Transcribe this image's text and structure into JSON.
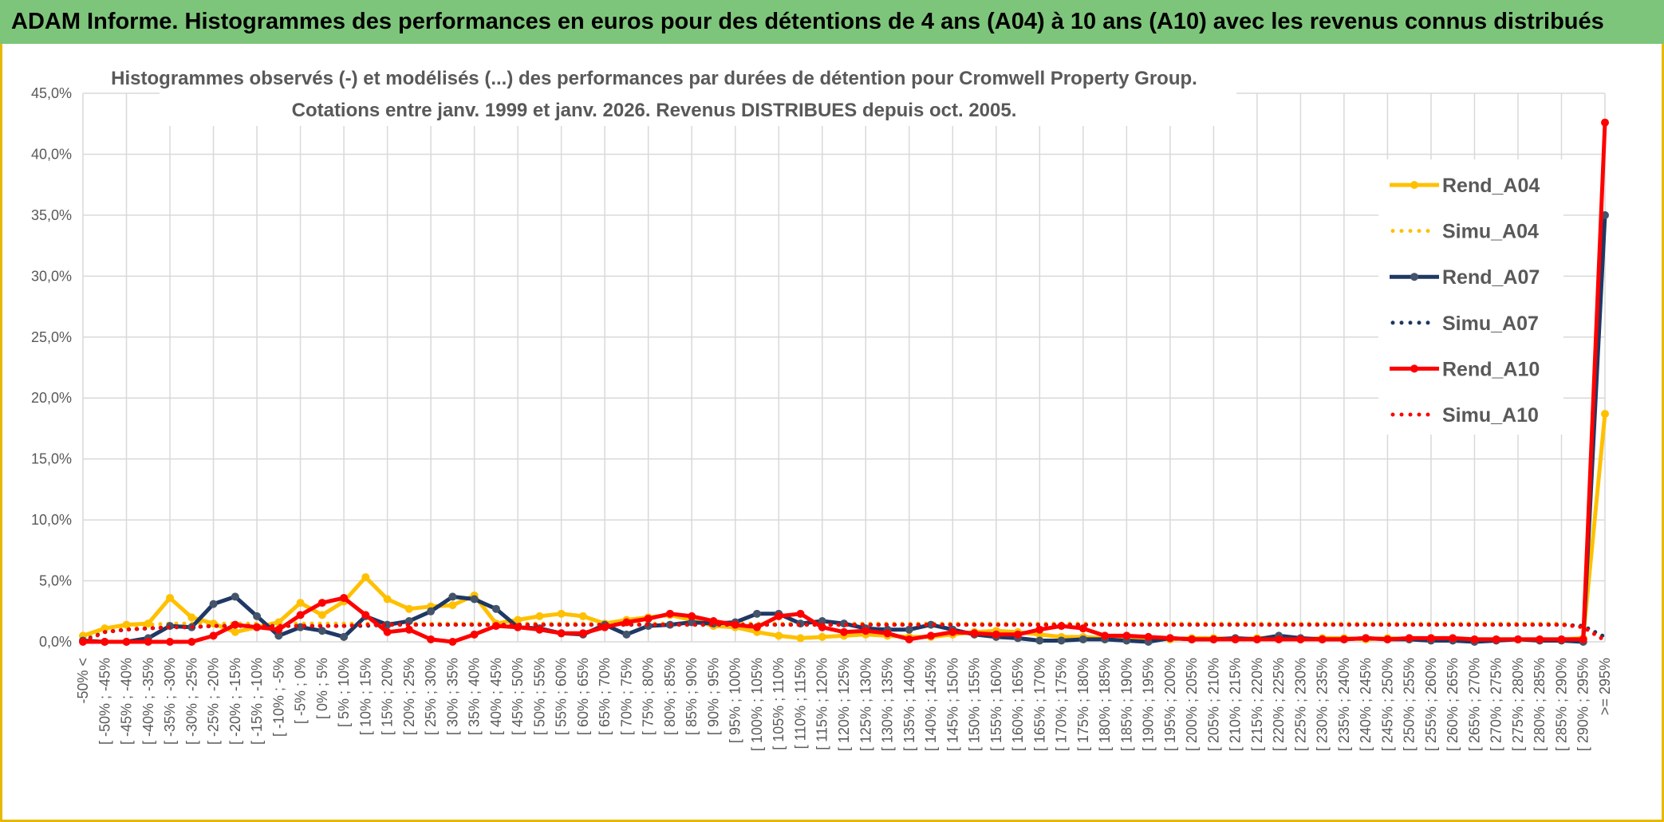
{
  "header": {
    "title": "ADAM Informe. Histogrammes des performances en euros pour des détentions de 4 ans (A04) à 10 ans (A10) avec les revenus connus distribués"
  },
  "chart_data": {
    "type": "line",
    "title": "Histogrammes observés (-) et modélisés (...) des performances par durées de détention pour Cromwell Property Group.",
    "subtitle": "Cotations entre janv. 1999 et janv. 2026. Revenus DISTRIBUES depuis oct. 2005.",
    "xlabel": "",
    "ylabel": "",
    "ylim": [
      0,
      45
    ],
    "yticks": [
      "0,0%",
      "5,0%",
      "10,0%",
      "15,0%",
      "20,0%",
      "25,0%",
      "30,0%",
      "35,0%",
      "40,0%",
      "45,0%"
    ],
    "categories": [
      "-50% <",
      "[ -50% ; -45%",
      "[ -45% ; -40%",
      "[ -40% ; -35%",
      "[ -35% ; -30%",
      "[ -30% ; -25%",
      "[ -25% ; -20%",
      "[ -20% ; -15%",
      "[ -15% ; -10%",
      "[ -10% ; -5%",
      "[ -5% ; 0%",
      "[ 0% ; 5%",
      "[ 5% ; 10%",
      "[ 10% ; 15%",
      "[ 15% ; 20%",
      "[ 20% ; 25%",
      "[ 25% ; 30%",
      "[ 30% ; 35%",
      "[ 35% ; 40%",
      "[ 40% ; 45%",
      "[ 45% ; 50%",
      "[ 50% ; 55%",
      "[ 55% ; 60%",
      "[ 60% ; 65%",
      "[ 65% ; 70%",
      "[ 70% ; 75%",
      "[ 75% ; 80%",
      "[ 80% ; 85%",
      "[ 85% ; 90%",
      "[ 90% ; 95%",
      "[ 95% ; 100%",
      "[ 100% ; 105%",
      "[ 105% ; 110%",
      "[ 110% ; 115%",
      "[ 115% ; 120%",
      "[ 120% ; 125%",
      "[ 125% ; 130%",
      "[ 130% ; 135%",
      "[ 135% ; 140%",
      "[ 140% ; 145%",
      "[ 145% ; 150%",
      "[ 150% ; 155%",
      "[ 155% ; 160%",
      "[ 160% ; 165%",
      "[ 165% ; 170%",
      "[ 170% ; 175%",
      "[ 175% ; 180%",
      "[ 180% ; 185%",
      "[ 185% ; 190%",
      "[ 190% ; 195%",
      "[ 195% ; 200%",
      "[ 200% ; 205%",
      "[ 205% ; 210%",
      "[ 210% ; 215%",
      "[ 215% ; 220%",
      "[ 220% ; 225%",
      "[ 225% ; 230%",
      "[ 230% ; 235%",
      "[ 235% ; 240%",
      "[ 240% ; 245%",
      "[ 245% ; 250%",
      "[ 250% ; 255%",
      "[ 255% ; 260%",
      "[ 260% ; 265%",
      "[ 265% ; 270%",
      "[ 270% ; 275%",
      "[ 275% ; 280%",
      "[ 280% ; 285%",
      "[ 285% ; 290%",
      "[ 290% ; 295%",
      ">= 295%"
    ],
    "series": [
      {
        "name": "Rend_A04",
        "color": "#ffc000",
        "style": "solid",
        "values": [
          0.5,
          1.1,
          1.4,
          1.5,
          3.6,
          2.0,
          1.5,
          0.8,
          1.2,
          1.6,
          3.2,
          2.2,
          3.3,
          5.3,
          3.5,
          2.7,
          2.9,
          3.0,
          3.8,
          1.5,
          1.8,
          2.1,
          2.3,
          2.1,
          1.5,
          1.8,
          2.0,
          2.2,
          1.8,
          1.3,
          1.2,
          0.8,
          0.5,
          0.3,
          0.4,
          0.5,
          0.6,
          0.5,
          0.4,
          0.4,
          0.6,
          0.8,
          0.9,
          0.8,
          0.6,
          0.4,
          0.4,
          0.3,
          0.2,
          0.3,
          0.2,
          0.3,
          0.3,
          0.2,
          0.3,
          0.3,
          0.2,
          0.3,
          0.3,
          0.2,
          0.3,
          0.2,
          0.2,
          0.2,
          0.2,
          0.2,
          0.2,
          0.2,
          0.2,
          0.3,
          18.7
        ]
      },
      {
        "name": "Simu_A04",
        "color": "#ffc000",
        "style": "dotted",
        "values": [
          0.2,
          1.0,
          1.3,
          1.4,
          1.5,
          1.5,
          1.5,
          1.5,
          1.5,
          1.5,
          1.5,
          1.5,
          1.5,
          1.5,
          1.5,
          1.5,
          1.5,
          1.5,
          1.5,
          1.5,
          1.5,
          1.5,
          1.5,
          1.5,
          1.5,
          1.5,
          1.5,
          1.5,
          1.5,
          1.5,
          1.5,
          1.5,
          1.5,
          1.5,
          1.5,
          1.5,
          1.5,
          1.5,
          1.5,
          1.5,
          1.5,
          1.5,
          1.5,
          1.5,
          1.5,
          1.5,
          1.5,
          1.5,
          1.5,
          1.5,
          1.5,
          1.5,
          1.5,
          1.5,
          1.5,
          1.5,
          1.5,
          1.5,
          1.5,
          1.5,
          1.5,
          1.5,
          1.5,
          1.5,
          1.5,
          1.5,
          1.5,
          1.5,
          1.5,
          1.2,
          0.3
        ]
      },
      {
        "name": "Rend_A07",
        "color": "#1f3864",
        "style": "solid",
        "values": [
          0.1,
          0.0,
          0.0,
          0.3,
          1.3,
          1.2,
          3.1,
          3.7,
          2.1,
          0.5,
          1.2,
          0.9,
          0.4,
          2.1,
          1.4,
          1.7,
          2.5,
          3.7,
          3.5,
          2.7,
          1.2,
          1.1,
          0.7,
          0.6,
          1.4,
          0.6,
          1.3,
          1.4,
          1.6,
          1.5,
          1.6,
          2.3,
          2.3,
          1.5,
          1.7,
          1.5,
          1.1,
          1.0,
          1.0,
          1.4,
          1.0,
          0.6,
          0.4,
          0.3,
          0.1,
          0.1,
          0.2,
          0.2,
          0.1,
          0.0,
          0.3,
          0.2,
          0.2,
          0.3,
          0.2,
          0.5,
          0.3,
          0.2,
          0.2,
          0.3,
          0.2,
          0.2,
          0.1,
          0.1,
          0.0,
          0.1,
          0.2,
          0.1,
          0.1,
          0.0,
          35.0
        ]
      },
      {
        "name": "Simu_A07",
        "color": "#1f3864",
        "style": "dotted",
        "values": [
          0.1,
          0.8,
          1.0,
          1.1,
          1.2,
          1.2,
          1.3,
          1.3,
          1.3,
          1.3,
          1.3,
          1.3,
          1.3,
          1.3,
          1.4,
          1.4,
          1.4,
          1.4,
          1.4,
          1.4,
          1.4,
          1.4,
          1.4,
          1.4,
          1.4,
          1.4,
          1.4,
          1.4,
          1.4,
          1.4,
          1.4,
          1.4,
          1.4,
          1.4,
          1.4,
          1.4,
          1.4,
          1.4,
          1.4,
          1.4,
          1.4,
          1.4,
          1.4,
          1.4,
          1.4,
          1.4,
          1.4,
          1.4,
          1.4,
          1.4,
          1.4,
          1.4,
          1.4,
          1.4,
          1.4,
          1.4,
          1.4,
          1.4,
          1.4,
          1.4,
          1.4,
          1.4,
          1.4,
          1.4,
          1.4,
          1.4,
          1.4,
          1.4,
          1.4,
          1.3,
          0.4
        ]
      },
      {
        "name": "Rend_A10",
        "color": "#ff0000",
        "style": "solid",
        "values": [
          0.0,
          0.0,
          0.0,
          0.0,
          0.0,
          0.0,
          0.5,
          1.4,
          1.2,
          1.0,
          2.2,
          3.2,
          3.6,
          2.2,
          0.8,
          1.0,
          0.2,
          0.0,
          0.6,
          1.3,
          1.2,
          1.0,
          0.7,
          0.7,
          1.2,
          1.6,
          1.9,
          2.3,
          2.1,
          1.7,
          1.4,
          1.2,
          2.1,
          2.3,
          1.2,
          0.8,
          0.9,
          0.7,
          0.2,
          0.5,
          0.8,
          0.7,
          0.6,
          0.6,
          1.0,
          1.3,
          1.1,
          0.5,
          0.5,
          0.4,
          0.3,
          0.2,
          0.2,
          0.2,
          0.2,
          0.2,
          0.2,
          0.2,
          0.2,
          0.3,
          0.2,
          0.3,
          0.3,
          0.3,
          0.2,
          0.2,
          0.2,
          0.2,
          0.2,
          0.2,
          42.6
        ]
      },
      {
        "name": "Simu_A10",
        "color": "#ff0000",
        "style": "dotted",
        "values": [
          0.0,
          0.8,
          1.0,
          1.1,
          1.2,
          1.2,
          1.3,
          1.3,
          1.3,
          1.3,
          1.3,
          1.3,
          1.3,
          1.4,
          1.4,
          1.4,
          1.4,
          1.4,
          1.4,
          1.4,
          1.4,
          1.4,
          1.4,
          1.4,
          1.4,
          1.4,
          1.4,
          1.4,
          1.4,
          1.4,
          1.4,
          1.4,
          1.4,
          1.4,
          1.4,
          1.4,
          1.4,
          1.4,
          1.4,
          1.4,
          1.4,
          1.4,
          1.4,
          1.4,
          1.4,
          1.4,
          1.4,
          1.4,
          1.4,
          1.4,
          1.4,
          1.4,
          1.4,
          1.4,
          1.4,
          1.4,
          1.4,
          1.4,
          1.4,
          1.4,
          1.4,
          1.4,
          1.4,
          1.4,
          1.4,
          1.4,
          1.4,
          1.4,
          1.4,
          1.2,
          0.1
        ]
      }
    ],
    "legend": {
      "position": "right",
      "entries": [
        "Rend_A04",
        "Simu_A04",
        "Rend_A07",
        "Simu_A07",
        "Rend_A10",
        "Simu_A10"
      ]
    }
  }
}
